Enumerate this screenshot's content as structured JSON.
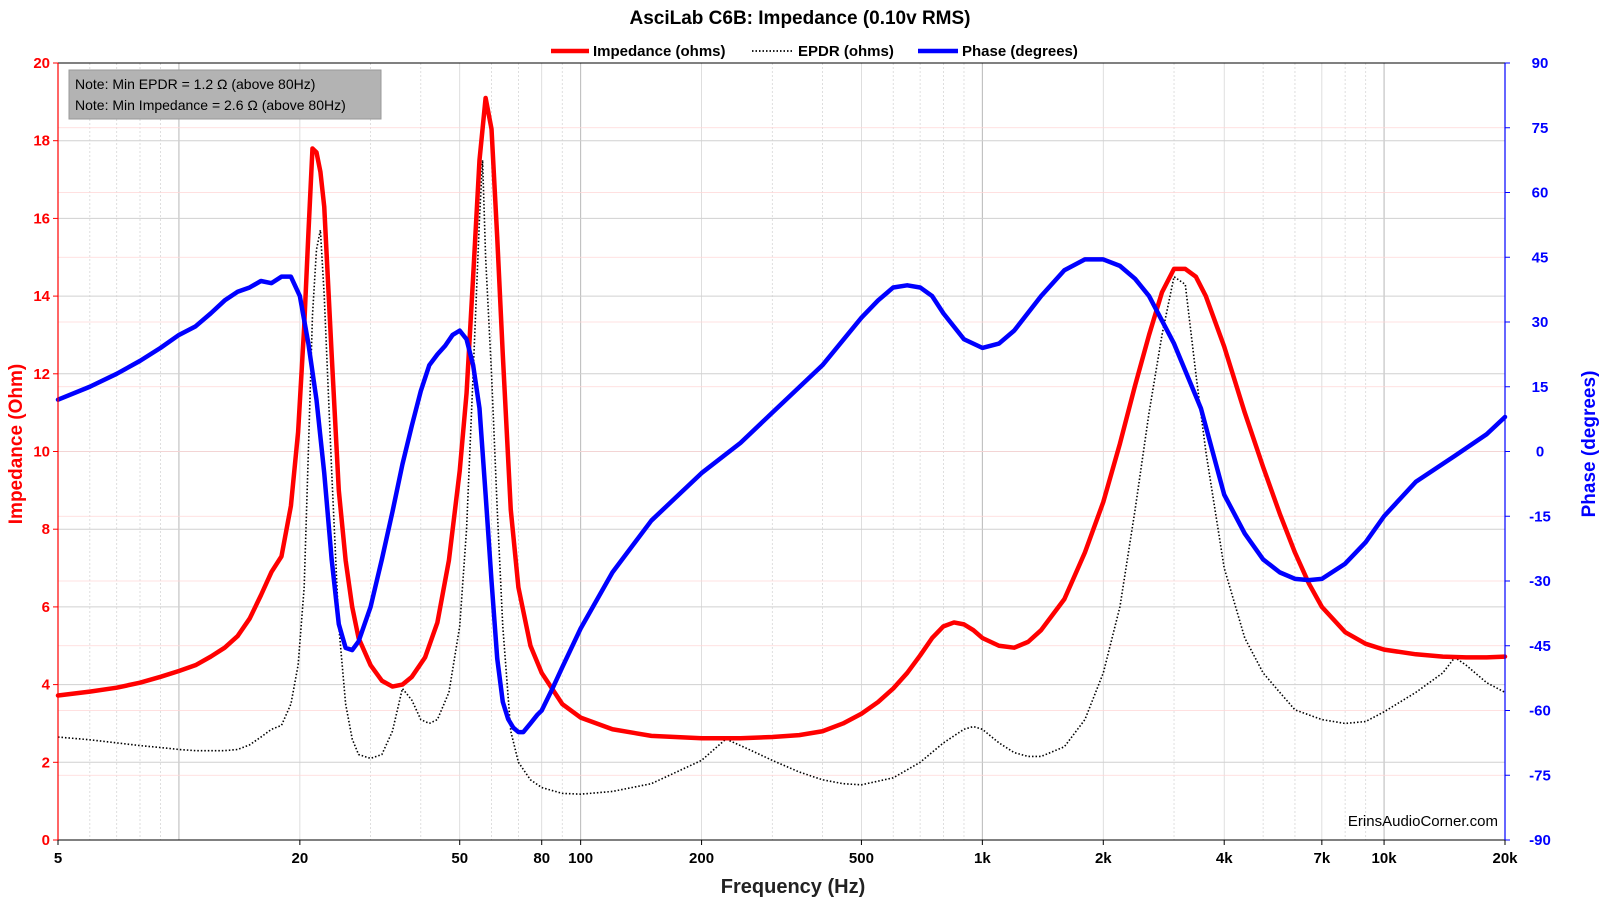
{
  "chart_data": {
    "type": "line",
    "title": "AsciLab C6B: Impedance (0.10v RMS)",
    "xlabel": "Frequency (Hz)",
    "ylabel_left": "Impedance (Ohm)",
    "ylabel_right": "Phase (degrees)",
    "x_scale": "log",
    "xlim": [
      5,
      20000
    ],
    "ylim_left": [
      0,
      20
    ],
    "ylim_right": [
      -90,
      90
    ],
    "grid": true,
    "legend_position": "top-center",
    "x_ticks": [
      {
        "value": 5,
        "label": "5"
      },
      {
        "value": 20,
        "label": "20"
      },
      {
        "value": 50,
        "label": "50"
      },
      {
        "value": 80,
        "label": "80"
      },
      {
        "value": 100,
        "label": "100"
      },
      {
        "value": 200,
        "label": "200"
      },
      {
        "value": 500,
        "label": "500"
      },
      {
        "value": 1000,
        "label": "1k"
      },
      {
        "value": 2000,
        "label": "2k"
      },
      {
        "value": 4000,
        "label": "4k"
      },
      {
        "value": 7000,
        "label": "7k"
      },
      {
        "value": 10000,
        "label": "10k"
      },
      {
        "value": 20000,
        "label": "20k"
      }
    ],
    "y_ticks_left": [
      "0",
      "2",
      "4",
      "6",
      "8",
      "10",
      "12",
      "14",
      "16",
      "18",
      "20"
    ],
    "y_ticks_right": [
      "-90",
      "-75",
      "-60",
      "-45",
      "-30",
      "-15",
      "0",
      "15",
      "30",
      "45",
      "60",
      "75",
      "90"
    ],
    "notes": [
      "Note: Min EPDR = 1.2 Ω (above 80Hz)",
      "Note: Min Impedance = 2.6 Ω (above 80Hz)"
    ],
    "watermark": "ErinsAudioCorner.com",
    "series": [
      {
        "name": "Impedance (ohms)",
        "axis": "left",
        "color": "#ff0000",
        "style": "solid",
        "points": [
          [
            5,
            3.72
          ],
          [
            6,
            3.82
          ],
          [
            7,
            3.92
          ],
          [
            8,
            4.05
          ],
          [
            9,
            4.2
          ],
          [
            10,
            4.35
          ],
          [
            11,
            4.5
          ],
          [
            12,
            4.72
          ],
          [
            13,
            4.95
          ],
          [
            14,
            5.25
          ],
          [
            15,
            5.7
          ],
          [
            16,
            6.3
          ],
          [
            17,
            6.9
          ],
          [
            18,
            7.3
          ],
          [
            19,
            8.6
          ],
          [
            19.8,
            10.5
          ],
          [
            20.5,
            13.2
          ],
          [
            21,
            15.6
          ],
          [
            21.5,
            17.8
          ],
          [
            22,
            17.7
          ],
          [
            22.5,
            17.2
          ],
          [
            23,
            16.3
          ],
          [
            24,
            12.5
          ],
          [
            25,
            9.0
          ],
          [
            26,
            7.2
          ],
          [
            27,
            6.0
          ],
          [
            28,
            5.2
          ],
          [
            30,
            4.5
          ],
          [
            32,
            4.1
          ],
          [
            34,
            3.95
          ],
          [
            36,
            4.0
          ],
          [
            38,
            4.2
          ],
          [
            41,
            4.7
          ],
          [
            44,
            5.6
          ],
          [
            47,
            7.2
          ],
          [
            50,
            9.5
          ],
          [
            52,
            11.5
          ],
          [
            54,
            14.5
          ],
          [
            56,
            17.5
          ],
          [
            58,
            19.1
          ],
          [
            60,
            18.3
          ],
          [
            62,
            15.5
          ],
          [
            64,
            12.5
          ],
          [
            67,
            8.5
          ],
          [
            70,
            6.5
          ],
          [
            75,
            5.0
          ],
          [
            80,
            4.3
          ],
          [
            90,
            3.5
          ],
          [
            100,
            3.15
          ],
          [
            120,
            2.85
          ],
          [
            150,
            2.68
          ],
          [
            200,
            2.62
          ],
          [
            250,
            2.62
          ],
          [
            300,
            2.65
          ],
          [
            350,
            2.7
          ],
          [
            400,
            2.8
          ],
          [
            450,
            3.0
          ],
          [
            500,
            3.25
          ],
          [
            550,
            3.55
          ],
          [
            600,
            3.9
          ],
          [
            650,
            4.3
          ],
          [
            700,
            4.75
          ],
          [
            750,
            5.2
          ],
          [
            800,
            5.5
          ],
          [
            850,
            5.6
          ],
          [
            900,
            5.55
          ],
          [
            950,
            5.4
          ],
          [
            1000,
            5.2
          ],
          [
            1100,
            5.0
          ],
          [
            1200,
            4.95
          ],
          [
            1300,
            5.1
          ],
          [
            1400,
            5.4
          ],
          [
            1600,
            6.2
          ],
          [
            1800,
            7.4
          ],
          [
            2000,
            8.7
          ],
          [
            2200,
            10.2
          ],
          [
            2400,
            11.7
          ],
          [
            2600,
            13.0
          ],
          [
            2800,
            14.1
          ],
          [
            3000,
            14.7
          ],
          [
            3200,
            14.7
          ],
          [
            3400,
            14.5
          ],
          [
            3600,
            14.0
          ],
          [
            4000,
            12.7
          ],
          [
            4500,
            11.0
          ],
          [
            5000,
            9.6
          ],
          [
            5500,
            8.4
          ],
          [
            6000,
            7.4
          ],
          [
            6500,
            6.6
          ],
          [
            7000,
            6.0
          ],
          [
            8000,
            5.35
          ],
          [
            9000,
            5.05
          ],
          [
            10000,
            4.9
          ],
          [
            12000,
            4.78
          ],
          [
            14000,
            4.72
          ],
          [
            16000,
            4.7
          ],
          [
            18000,
            4.7
          ],
          [
            20000,
            4.72
          ]
        ]
      },
      {
        "name": "EPDR (ohms)",
        "axis": "left",
        "color": "#000000",
        "style": "dotted",
        "points": [
          [
            5,
            2.65
          ],
          [
            6,
            2.58
          ],
          [
            7,
            2.5
          ],
          [
            8,
            2.43
          ],
          [
            9,
            2.38
          ],
          [
            10,
            2.33
          ],
          [
            11,
            2.3
          ],
          [
            12,
            2.3
          ],
          [
            13,
            2.3
          ],
          [
            14,
            2.33
          ],
          [
            15,
            2.45
          ],
          [
            16,
            2.65
          ],
          [
            17,
            2.85
          ],
          [
            18,
            2.95
          ],
          [
            19,
            3.5
          ],
          [
            19.8,
            4.5
          ],
          [
            20.5,
            6.5
          ],
          [
            21,
            10.0
          ],
          [
            21.5,
            13.5
          ],
          [
            22,
            15.2
          ],
          [
            22.5,
            15.7
          ],
          [
            23,
            14.0
          ],
          [
            24,
            9.5
          ],
          [
            25,
            5.5
          ],
          [
            26,
            3.5
          ],
          [
            27,
            2.6
          ],
          [
            28,
            2.2
          ],
          [
            30,
            2.1
          ],
          [
            32,
            2.2
          ],
          [
            34,
            2.8
          ],
          [
            36,
            3.9
          ],
          [
            38,
            3.6
          ],
          [
            40,
            3.1
          ],
          [
            42,
            3.0
          ],
          [
            44,
            3.1
          ],
          [
            47,
            3.8
          ],
          [
            50,
            5.5
          ],
          [
            52,
            8.0
          ],
          [
            54,
            12.0
          ],
          [
            56,
            16.0
          ],
          [
            57,
            17.5
          ],
          [
            58,
            15.0
          ],
          [
            60,
            12.0
          ],
          [
            62,
            8.5
          ],
          [
            64,
            5.5
          ],
          [
            67,
            2.8
          ],
          [
            70,
            2.0
          ],
          [
            75,
            1.55
          ],
          [
            80,
            1.35
          ],
          [
            90,
            1.2
          ],
          [
            100,
            1.18
          ],
          [
            120,
            1.25
          ],
          [
            150,
            1.45
          ],
          [
            200,
            2.05
          ],
          [
            230,
            2.6
          ],
          [
            260,
            2.35
          ],
          [
            300,
            2.05
          ],
          [
            350,
            1.75
          ],
          [
            400,
            1.55
          ],
          [
            450,
            1.45
          ],
          [
            500,
            1.42
          ],
          [
            600,
            1.6
          ],
          [
            700,
            2.0
          ],
          [
            800,
            2.5
          ],
          [
            900,
            2.85
          ],
          [
            950,
            2.92
          ],
          [
            1000,
            2.85
          ],
          [
            1100,
            2.5
          ],
          [
            1200,
            2.25
          ],
          [
            1300,
            2.15
          ],
          [
            1400,
            2.15
          ],
          [
            1600,
            2.4
          ],
          [
            1800,
            3.1
          ],
          [
            2000,
            4.3
          ],
          [
            2200,
            6.0
          ],
          [
            2400,
            8.5
          ],
          [
            2600,
            11.0
          ],
          [
            2800,
            13.0
          ],
          [
            3000,
            14.5
          ],
          [
            3200,
            14.3
          ],
          [
            3400,
            12.0
          ],
          [
            3600,
            10.0
          ],
          [
            4000,
            7.0
          ],
          [
            4500,
            5.2
          ],
          [
            5000,
            4.3
          ],
          [
            5500,
            3.8
          ],
          [
            6000,
            3.35
          ],
          [
            7000,
            3.1
          ],
          [
            8000,
            3.0
          ],
          [
            9000,
            3.05
          ],
          [
            10000,
            3.3
          ],
          [
            12000,
            3.8
          ],
          [
            14000,
            4.3
          ],
          [
            15000,
            4.7
          ],
          [
            16000,
            4.5
          ],
          [
            18000,
            4.05
          ],
          [
            20000,
            3.8
          ]
        ]
      },
      {
        "name": "Phase (degrees)",
        "axis": "right",
        "color": "#0000ff",
        "style": "solid",
        "points": [
          [
            5,
            12
          ],
          [
            6,
            15
          ],
          [
            7,
            18
          ],
          [
            8,
            21
          ],
          [
            9,
            24
          ],
          [
            10,
            27
          ],
          [
            11,
            29
          ],
          [
            12,
            32
          ],
          [
            13,
            35
          ],
          [
            14,
            37
          ],
          [
            15,
            38
          ],
          [
            16,
            39.5
          ],
          [
            17,
            39
          ],
          [
            18,
            40.5
          ],
          [
            19,
            40.5
          ],
          [
            20,
            36
          ],
          [
            21,
            25
          ],
          [
            22,
            12
          ],
          [
            23,
            -5
          ],
          [
            24,
            -25
          ],
          [
            25,
            -40
          ],
          [
            26,
            -45.5
          ],
          [
            27,
            -46
          ],
          [
            28,
            -44
          ],
          [
            30,
            -36
          ],
          [
            32,
            -25
          ],
          [
            34,
            -14
          ],
          [
            36,
            -3
          ],
          [
            38,
            6
          ],
          [
            40,
            14
          ],
          [
            42,
            20
          ],
          [
            44,
            22.5
          ],
          [
            46,
            24.5
          ],
          [
            48,
            27
          ],
          [
            50,
            28
          ],
          [
            52,
            26
          ],
          [
            54,
            20
          ],
          [
            56,
            10
          ],
          [
            58,
            -10
          ],
          [
            60,
            -30
          ],
          [
            62,
            -48
          ],
          [
            64,
            -58
          ],
          [
            66,
            -62
          ],
          [
            68,
            -64
          ],
          [
            70,
            -65
          ],
          [
            72,
            -65
          ],
          [
            75,
            -63
          ],
          [
            78,
            -61
          ],
          [
            80,
            -60
          ],
          [
            85,
            -55
          ],
          [
            90,
            -50
          ],
          [
            100,
            -41
          ],
          [
            120,
            -28
          ],
          [
            150,
            -16
          ],
          [
            200,
            -5
          ],
          [
            250,
            2
          ],
          [
            300,
            9
          ],
          [
            400,
            20
          ],
          [
            500,
            31
          ],
          [
            550,
            35
          ],
          [
            600,
            38
          ],
          [
            650,
            38.5
          ],
          [
            700,
            38
          ],
          [
            750,
            36
          ],
          [
            800,
            32
          ],
          [
            900,
            26
          ],
          [
            1000,
            24
          ],
          [
            1100,
            25
          ],
          [
            1200,
            28
          ],
          [
            1400,
            36
          ],
          [
            1600,
            42
          ],
          [
            1800,
            44.5
          ],
          [
            2000,
            44.5
          ],
          [
            2200,
            43
          ],
          [
            2400,
            40
          ],
          [
            2600,
            36
          ],
          [
            3000,
            25
          ],
          [
            3500,
            10
          ],
          [
            4000,
            -10
          ],
          [
            4500,
            -19
          ],
          [
            5000,
            -25
          ],
          [
            5500,
            -28
          ],
          [
            6000,
            -29.5
          ],
          [
            6500,
            -29.8
          ],
          [
            7000,
            -29.5
          ],
          [
            8000,
            -26
          ],
          [
            9000,
            -21
          ],
          [
            10000,
            -15
          ],
          [
            12000,
            -7
          ],
          [
            15000,
            -1
          ],
          [
            18000,
            4
          ],
          [
            20000,
            8
          ]
        ]
      }
    ]
  }
}
